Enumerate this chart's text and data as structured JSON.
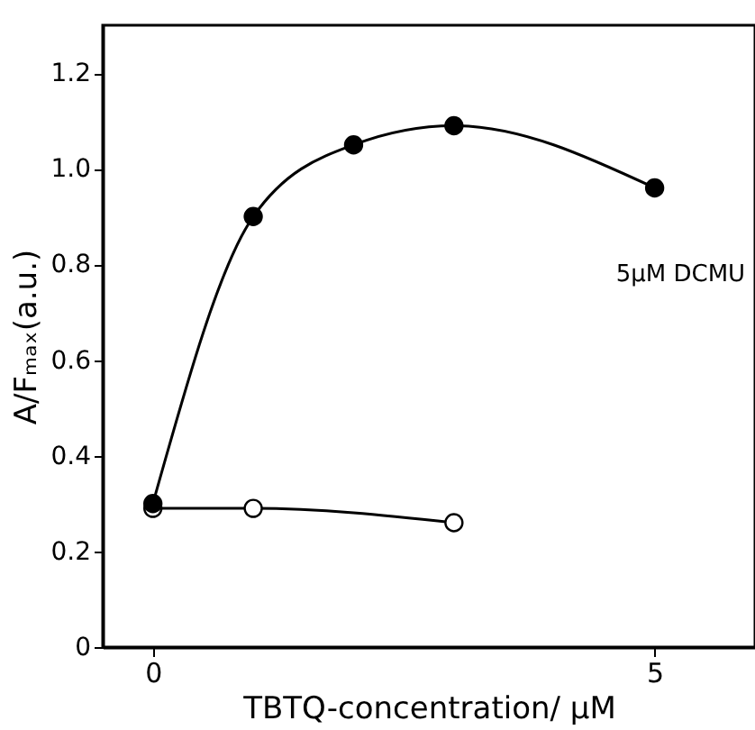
{
  "chart_data": {
    "type": "line",
    "xlabel": "TBTQ-concentration/ µM",
    "ylabel": "A/Fₘₐₓ(a.u.)",
    "annotations": [
      "5µM DCMU"
    ],
    "xlim": [
      -0.5,
      6
    ],
    "xticks": [
      0,
      5
    ],
    "ylim": [
      0,
      1.3
    ],
    "yticks": [
      0,
      0.2,
      0.4,
      0.6,
      0.8,
      {
        "value": 1,
        "label": "1.0"
      },
      1.2
    ],
    "marker": "circle",
    "series": [
      {
        "color": "#000000",
        "x": [
          0,
          1,
          2,
          3,
          5
        ],
        "values": [
          0.3,
          0.9,
          1.05,
          1.09,
          0.96
        ]
      },
      {
        "color": "#000000",
        "x": [
          0,
          1,
          3
        ],
        "values": [
          0.29,
          0.29,
          0.26
        ]
      }
    ]
  }
}
